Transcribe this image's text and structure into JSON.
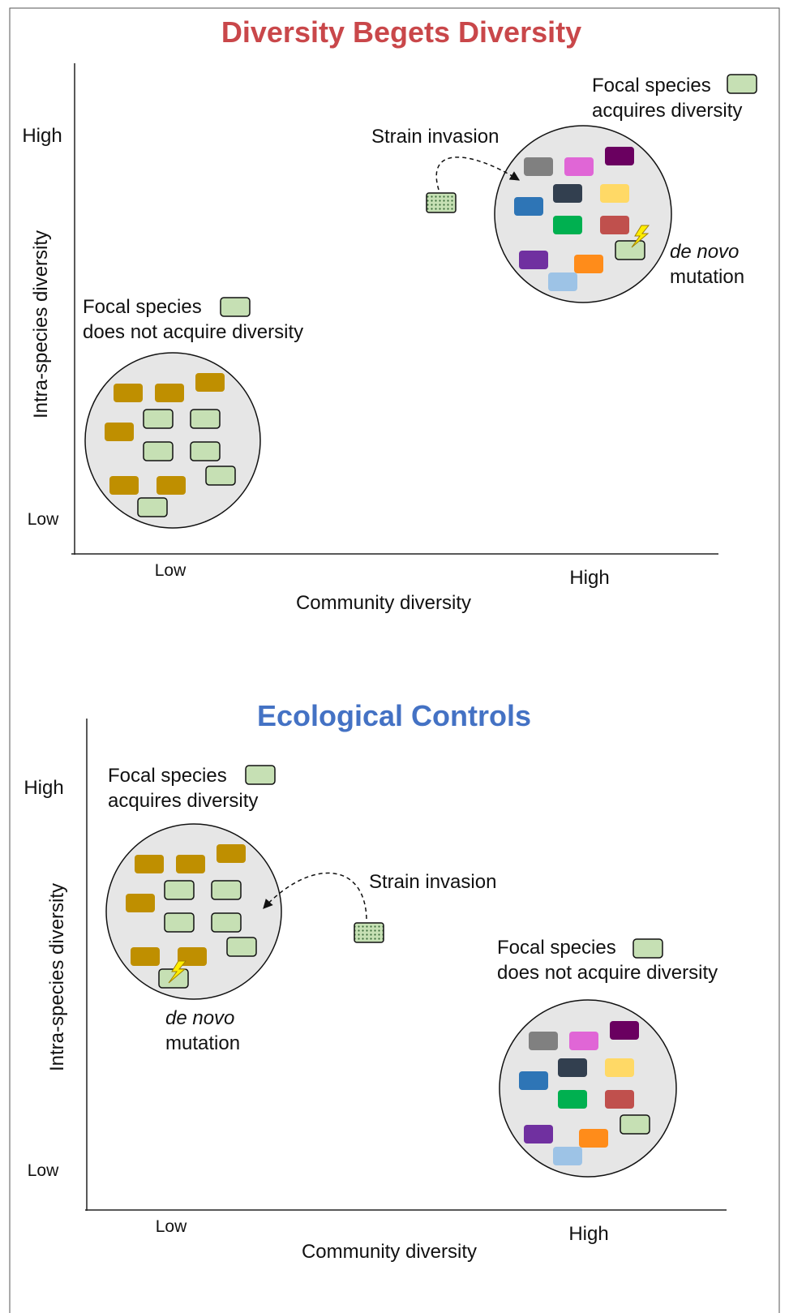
{
  "panels": [
    {
      "title": "Diversity Begets Diversity",
      "y_axis_label": "Intra-species diversity",
      "y_high": "High",
      "y_low": "Low",
      "x_axis_label": "Community diversity",
      "x_low": "Low",
      "x_high": "High",
      "low_community": {
        "label_lines": [
          "Focal species",
          "does not acquire diversity"
        ]
      },
      "high_community": {
        "label_lines": [
          "Focal species",
          "acquires diversity"
        ]
      },
      "strain_invasion": "Strain invasion",
      "mutation_lines": [
        "de novo",
        "mutation"
      ]
    },
    {
      "title": "Ecological Controls",
      "y_axis_label": "Intra-species diversity",
      "y_high": "High",
      "y_low": "Low",
      "x_axis_label": "Community diversity",
      "x_low": "Low",
      "x_high": "High",
      "low_community": {
        "label_lines": [
          "Focal species",
          "acquires diversity"
        ]
      },
      "high_community": {
        "label_lines": [
          "Focal species",
          "does not acquire diversity"
        ]
      },
      "strain_invasion": "Strain invasion",
      "mutation_lines": [
        "de novo",
        "mutation"
      ]
    }
  ]
}
